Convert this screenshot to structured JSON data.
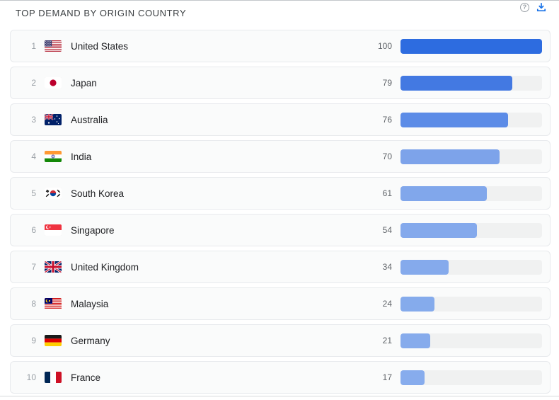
{
  "header": {
    "title": "TOP DEMAND BY ORIGIN COUNTRY",
    "help_glyph": "?",
    "icon_colors": {
      "help": "#9aa0a6",
      "download": "#1a73e8"
    }
  },
  "rows": [
    {
      "rank": "1",
      "country": "United States",
      "flag": "us",
      "value": 100,
      "bar_color": "#2d6ce0"
    },
    {
      "rank": "2",
      "country": "Japan",
      "flag": "jp",
      "value": 79,
      "bar_color": "#4379e2"
    },
    {
      "rank": "3",
      "country": "Australia",
      "flag": "au",
      "value": 76,
      "bar_color": "#5c8ce7"
    },
    {
      "rank": "4",
      "country": "India",
      "flag": "in",
      "value": 70,
      "bar_color": "#7da3ea"
    },
    {
      "rank": "5",
      "country": "South Korea",
      "flag": "kr",
      "value": 61,
      "bar_color": "#81a7eb"
    },
    {
      "rank": "6",
      "country": "Singapore",
      "flag": "sg",
      "value": 54,
      "bar_color": "#84a9ec"
    },
    {
      "rank": "7",
      "country": "United Kingdom",
      "flag": "gb",
      "value": 34,
      "bar_color": "#85aaec"
    },
    {
      "rank": "8",
      "country": "Malaysia",
      "flag": "my",
      "value": 24,
      "bar_color": "#85abec"
    },
    {
      "rank": "9",
      "country": "Germany",
      "flag": "de",
      "value": 21,
      "bar_color": "#86abec"
    },
    {
      "rank": "10",
      "country": "France",
      "flag": "fr",
      "value": 17,
      "bar_color": "#87aced"
    }
  ],
  "chart_data": {
    "type": "bar",
    "orientation": "horizontal",
    "title": "TOP DEMAND BY ORIGIN COUNTRY",
    "categories": [
      "United States",
      "Japan",
      "Australia",
      "India",
      "South Korea",
      "Singapore",
      "United Kingdom",
      "Malaysia",
      "Germany",
      "France"
    ],
    "values": [
      100,
      79,
      76,
      70,
      61,
      54,
      34,
      24,
      21,
      17
    ],
    "xlabel": "",
    "ylabel": "",
    "xlim": [
      0,
      100
    ],
    "grid": false,
    "legend": false,
    "value_labels": true
  },
  "colors": {
    "track": "#f0f1f1",
    "card_bg": "#fafbfb",
    "card_border": "#e8eaed",
    "title_text": "#3c4043",
    "rank_text": "#9aa0a6",
    "country_text": "#202124",
    "value_text": "#5f6368"
  }
}
